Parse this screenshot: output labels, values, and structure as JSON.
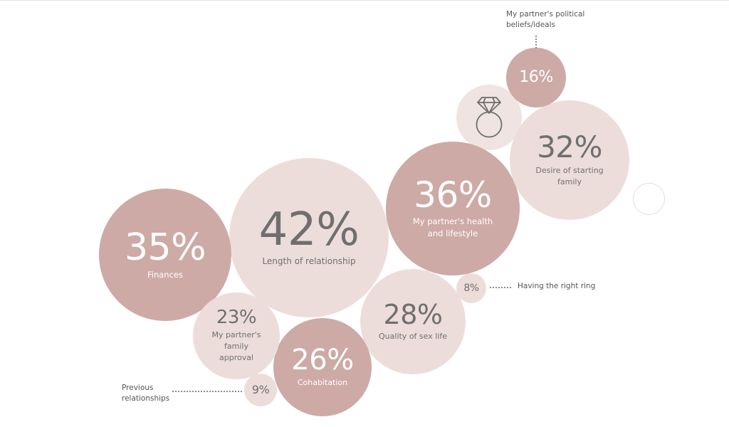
{
  "chart_data": {
    "type": "bubble",
    "title": "",
    "unit": "%",
    "colors": {
      "dark": "#cdaaa6",
      "light": "#edddda",
      "text_on_dark": "#ffffff",
      "text_on_light": "#6f6f6f"
    },
    "items": [
      {
        "id": "length",
        "value": 42,
        "pct": "42%",
        "label": "Length of relationship",
        "tone": "light"
      },
      {
        "id": "health",
        "value": 36,
        "pct": "36%",
        "label": "My partner's health and lifestyle",
        "tone": "dark"
      },
      {
        "id": "finances",
        "value": 35,
        "pct": "35%",
        "label": "Finances",
        "tone": "dark"
      },
      {
        "id": "family",
        "value": 32,
        "pct": "32%",
        "label": "Desire of starting family",
        "tone": "light"
      },
      {
        "id": "sex",
        "value": 28,
        "pct": "28%",
        "label": "Quality of sex life",
        "tone": "light"
      },
      {
        "id": "cohabitation",
        "value": 26,
        "pct": "26%",
        "label": "Cohabitation",
        "tone": "dark"
      },
      {
        "id": "approval",
        "value": 23,
        "pct": "23%",
        "label": "My partner's family approval",
        "tone": "light"
      },
      {
        "id": "political",
        "value": 16,
        "pct": "16%",
        "label": "My partner's political beliefs/ideals",
        "tone": "dark"
      },
      {
        "id": "previous",
        "value": 9,
        "pct": "9%",
        "label": "Previous relationships",
        "tone": "light"
      },
      {
        "id": "ring",
        "value": 8,
        "pct": "8%",
        "label": "Having the right ring",
        "tone": "light"
      }
    ],
    "icon": "diamond-ring-icon"
  }
}
